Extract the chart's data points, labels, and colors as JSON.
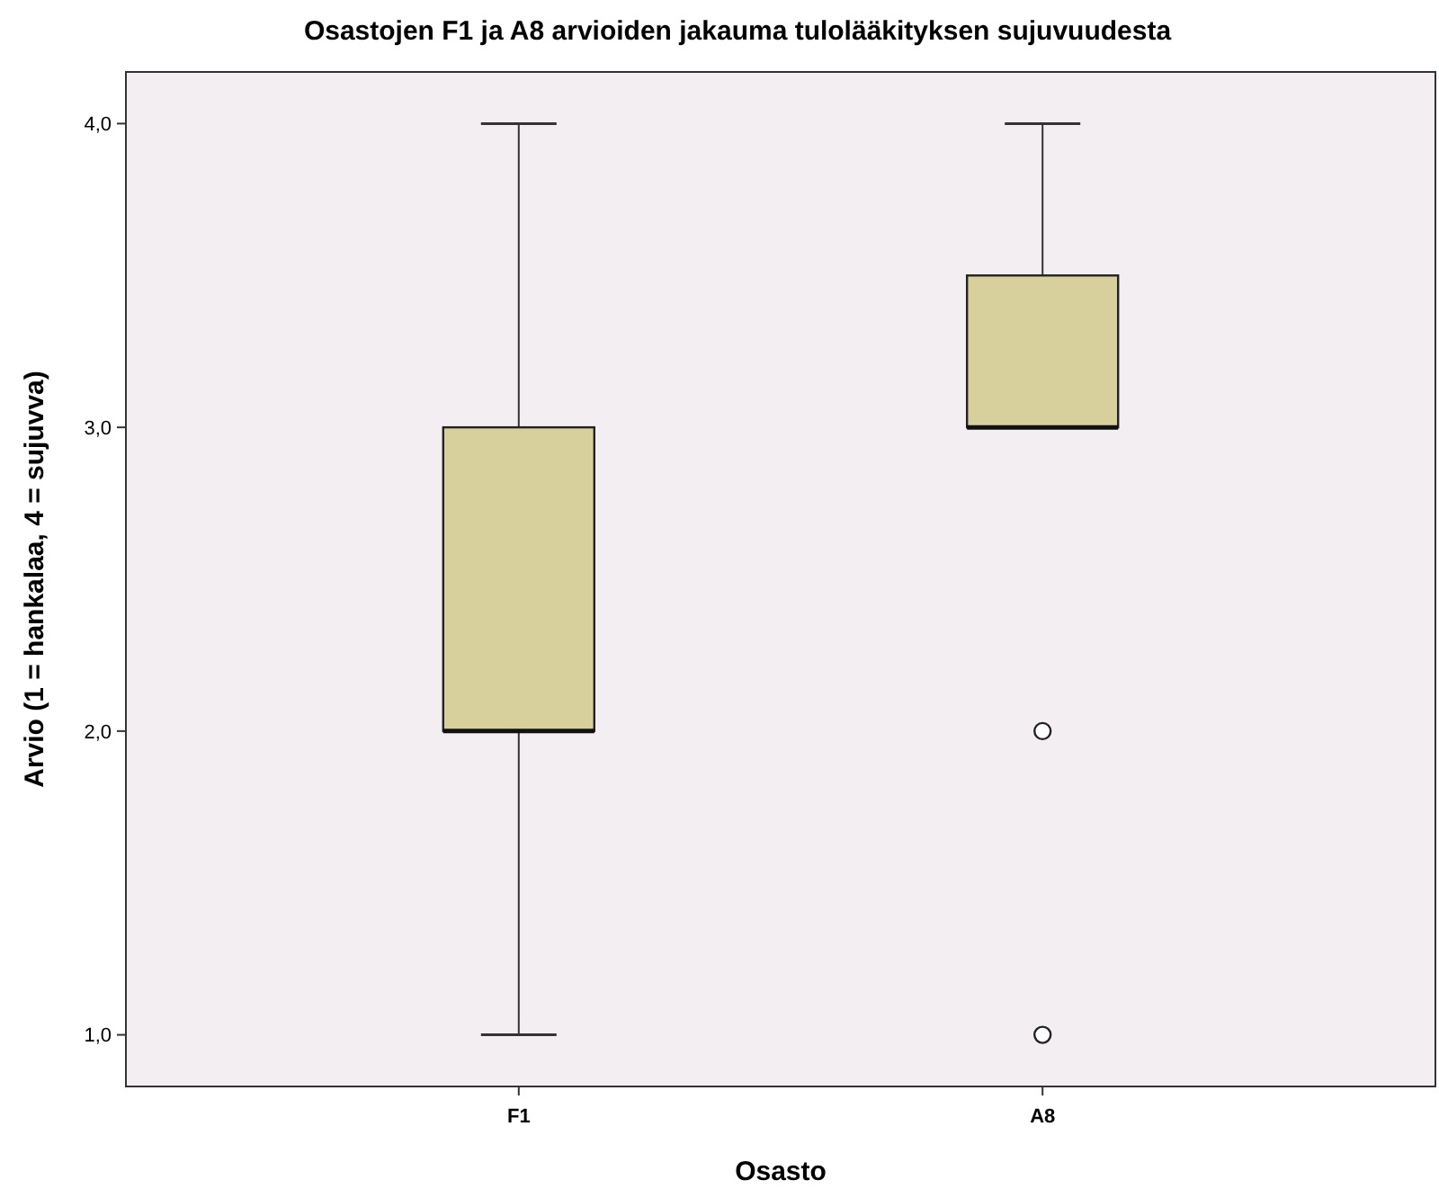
{
  "chart_data": {
    "type": "box",
    "title": "Osastojen F1 ja A8 arvioiden jakauma tulolääkityksen sujuvuudesta",
    "xlabel": "Osasto",
    "ylabel": "Arvio (1 = hankalaa, 4 = sujuvva)",
    "categories": [
      "F1",
      "A8"
    ],
    "color": "#d8d09c",
    "boxes": [
      {
        "low": 1,
        "q1": 2,
        "median": 2,
        "q3": 3,
        "high": 4
      },
      {
        "low": 3,
        "q1": 3,
        "median": 3,
        "q3": 3.5,
        "high": 4,
        "outliers": [
          2,
          1
        ]
      }
    ],
    "ylim": [
      0.83,
      4.17
    ],
    "yticks": [
      {
        "value": 1,
        "label": "1,0"
      },
      {
        "value": 2,
        "label": "2,0"
      },
      {
        "value": 3,
        "label": "3,0"
      },
      {
        "value": 4,
        "label": "4,0"
      }
    ],
    "grid": false
  }
}
